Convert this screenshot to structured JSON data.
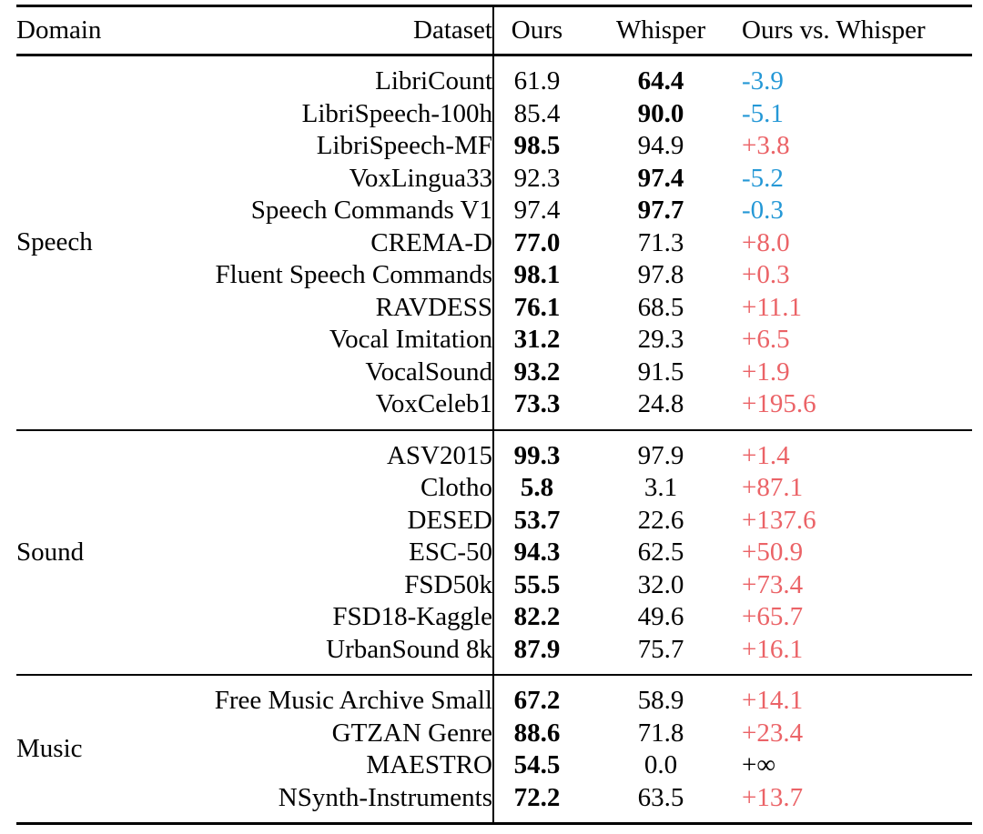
{
  "page": {
    "background": "#ffffff"
  },
  "table": {
    "headers": [
      "Domain",
      "Dataset",
      "Ours",
      "Whisper",
      "Ours vs. Whisper"
    ],
    "colors": {
      "positive_delta": "#eb6367",
      "negative_delta": "#2598d6",
      "neutral_delta": "#000000",
      "text": "#000000",
      "rules": "#000000"
    },
    "sections": [
      {
        "domain": "Speech",
        "rows": [
          {
            "dataset": "LibriCount",
            "ours": "61.9",
            "whisper": "64.4",
            "delta": "-3.9",
            "best": "whisper",
            "tone": "neg"
          },
          {
            "dataset": "LibriSpeech-100h",
            "ours": "85.4",
            "whisper": "90.0",
            "delta": "-5.1",
            "best": "whisper",
            "tone": "neg"
          },
          {
            "dataset": "LibriSpeech-MF",
            "ours": "98.5",
            "whisper": "94.9",
            "delta": "+3.8",
            "best": "ours",
            "tone": "pos"
          },
          {
            "dataset": "VoxLingua33",
            "ours": "92.3",
            "whisper": "97.4",
            "delta": "-5.2",
            "best": "whisper",
            "tone": "neg"
          },
          {
            "dataset": "Speech Commands V1",
            "ours": "97.4",
            "whisper": "97.7",
            "delta": "-0.3",
            "best": "whisper",
            "tone": "neg"
          },
          {
            "dataset": "CREMA-D",
            "ours": "77.0",
            "whisper": "71.3",
            "delta": "+8.0",
            "best": "ours",
            "tone": "pos"
          },
          {
            "dataset": "Fluent Speech Commands",
            "ours": "98.1",
            "whisper": "97.8",
            "delta": "+0.3",
            "best": "ours",
            "tone": "pos"
          },
          {
            "dataset": "RAVDESS",
            "ours": "76.1",
            "whisper": "68.5",
            "delta": "+11.1",
            "best": "ours",
            "tone": "pos"
          },
          {
            "dataset": "Vocal Imitation",
            "ours": "31.2",
            "whisper": "29.3",
            "delta": "+6.5",
            "best": "ours",
            "tone": "pos"
          },
          {
            "dataset": "VocalSound",
            "ours": "93.2",
            "whisper": "91.5",
            "delta": "+1.9",
            "best": "ours",
            "tone": "pos"
          },
          {
            "dataset": "VoxCeleb1",
            "ours": "73.3",
            "whisper": "24.8",
            "delta": "+195.6",
            "best": "ours",
            "tone": "pos"
          }
        ]
      },
      {
        "domain": "Sound",
        "rows": [
          {
            "dataset": "ASV2015",
            "ours": "99.3",
            "whisper": "97.9",
            "delta": "+1.4",
            "best": "ours",
            "tone": "pos"
          },
          {
            "dataset": "Clotho",
            "ours": "5.8",
            "whisper": "3.1",
            "delta": "+87.1",
            "best": "ours",
            "tone": "pos"
          },
          {
            "dataset": "DESED",
            "ours": "53.7",
            "whisper": "22.6",
            "delta": "+137.6",
            "best": "ours",
            "tone": "pos"
          },
          {
            "dataset": "ESC-50",
            "ours": "94.3",
            "whisper": "62.5",
            "delta": "+50.9",
            "best": "ours",
            "tone": "pos"
          },
          {
            "dataset": "FSD50k",
            "ours": "55.5",
            "whisper": "32.0",
            "delta": "+73.4",
            "best": "ours",
            "tone": "pos"
          },
          {
            "dataset": "FSD18-Kaggle",
            "ours": "82.2",
            "whisper": "49.6",
            "delta": "+65.7",
            "best": "ours",
            "tone": "pos"
          },
          {
            "dataset": "UrbanSound 8k",
            "ours": "87.9",
            "whisper": "75.7",
            "delta": "+16.1",
            "best": "ours",
            "tone": "pos"
          }
        ]
      },
      {
        "domain": "Music",
        "rows": [
          {
            "dataset": "Free Music Archive Small",
            "ours": "67.2",
            "whisper": "58.9",
            "delta": "+14.1",
            "best": "ours",
            "tone": "pos"
          },
          {
            "dataset": "GTZAN Genre",
            "ours": "88.6",
            "whisper": "71.8",
            "delta": "+23.4",
            "best": "ours",
            "tone": "pos"
          },
          {
            "dataset": "MAESTRO",
            "ours": "54.5",
            "whisper": "0.0",
            "delta": "+∞",
            "best": "ours",
            "tone": "inf"
          },
          {
            "dataset": "NSynth-Instruments",
            "ours": "72.2",
            "whisper": "63.5",
            "delta": "+13.7",
            "best": "ours",
            "tone": "pos"
          }
        ]
      }
    ]
  }
}
